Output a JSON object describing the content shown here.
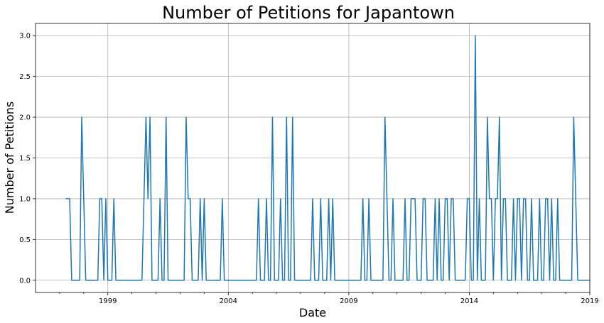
{
  "chart_data": {
    "type": "line",
    "title": "Number of Petitions for Japantown",
    "xlabel": "Date",
    "ylabel": "Number of Petitions",
    "xlim": [
      "1996-01",
      "2019-01"
    ],
    "ylim": [
      -0.15,
      3.15
    ],
    "grid": true,
    "x_ticks": [
      "1999",
      "2004",
      "2009",
      "2014",
      "2019"
    ],
    "y_ticks": [
      "0.0",
      "0.5",
      "1.0",
      "1.5",
      "2.0",
      "2.5",
      "3.0"
    ],
    "series": [
      {
        "color": "#1f77b4",
        "points": [
          [
            "1997-04",
            1
          ],
          [
            "1997-05",
            1
          ],
          [
            "1997-06",
            1
          ],
          [
            "1997-07",
            0
          ],
          [
            "1997-08",
            0
          ],
          [
            "1997-09",
            0
          ],
          [
            "1997-10",
            0
          ],
          [
            "1997-11",
            0
          ],
          [
            "1997-12",
            2
          ],
          [
            "1998-01",
            1
          ],
          [
            "1998-02",
            0
          ],
          [
            "1998-03",
            0
          ],
          [
            "1998-04",
            0
          ],
          [
            "1998-05",
            0
          ],
          [
            "1998-06",
            0
          ],
          [
            "1998-07",
            0
          ],
          [
            "1998-08",
            0
          ],
          [
            "1998-09",
            1
          ],
          [
            "1998-10",
            1
          ],
          [
            "1998-11",
            0
          ],
          [
            "1998-12",
            1
          ],
          [
            "1999-01",
            0
          ],
          [
            "1999-02",
            0
          ],
          [
            "1999-03",
            0
          ],
          [
            "1999-04",
            1
          ],
          [
            "1999-05",
            0
          ],
          [
            "1999-06",
            0
          ],
          [
            "1999-07",
            0
          ],
          [
            "1999-08",
            0
          ],
          [
            "1999-09",
            0
          ],
          [
            "1999-10",
            0
          ],
          [
            "1999-11",
            0
          ],
          [
            "1999-12",
            0
          ],
          [
            "2000-01",
            0
          ],
          [
            "2000-02",
            0
          ],
          [
            "2000-03",
            0
          ],
          [
            "2000-04",
            0
          ],
          [
            "2000-05",
            0
          ],
          [
            "2000-06",
            0
          ],
          [
            "2000-07",
            1
          ],
          [
            "2000-08",
            2
          ],
          [
            "2000-09",
            1
          ],
          [
            "2000-10",
            2
          ],
          [
            "2000-11",
            0
          ],
          [
            "2000-12",
            0
          ],
          [
            "2001-01",
            0
          ],
          [
            "2001-02",
            0
          ],
          [
            "2001-03",
            1
          ],
          [
            "2001-04",
            0
          ],
          [
            "2001-05",
            0
          ],
          [
            "2001-06",
            2
          ],
          [
            "2001-07",
            0
          ],
          [
            "2001-08",
            0
          ],
          [
            "2001-09",
            0
          ],
          [
            "2001-10",
            0
          ],
          [
            "2001-11",
            0
          ],
          [
            "2001-12",
            0
          ],
          [
            "2002-01",
            0
          ],
          [
            "2002-02",
            0
          ],
          [
            "2002-03",
            0
          ],
          [
            "2002-04",
            2
          ],
          [
            "2002-05",
            1
          ],
          [
            "2002-06",
            1
          ],
          [
            "2002-07",
            0
          ],
          [
            "2002-08",
            0
          ],
          [
            "2002-09",
            0
          ],
          [
            "2002-10",
            0
          ],
          [
            "2002-11",
            1
          ],
          [
            "2002-12",
            0
          ],
          [
            "2003-01",
            1
          ],
          [
            "2003-02",
            0
          ],
          [
            "2003-03",
            0
          ],
          [
            "2003-04",
            0
          ],
          [
            "2003-05",
            0
          ],
          [
            "2003-06",
            0
          ],
          [
            "2003-07",
            0
          ],
          [
            "2003-08",
            0
          ],
          [
            "2003-09",
            0
          ],
          [
            "2003-10",
            1
          ],
          [
            "2003-11",
            0
          ],
          [
            "2003-12",
            0
          ],
          [
            "2004-01",
            0
          ],
          [
            "2004-02",
            0
          ],
          [
            "2004-03",
            0
          ],
          [
            "2004-04",
            0
          ],
          [
            "2004-05",
            0
          ],
          [
            "2004-06",
            0
          ],
          [
            "2004-07",
            0
          ],
          [
            "2004-08",
            0
          ],
          [
            "2004-09",
            0
          ],
          [
            "2004-10",
            0
          ],
          [
            "2004-11",
            0
          ],
          [
            "2004-12",
            0
          ],
          [
            "2005-01",
            0
          ],
          [
            "2005-02",
            0
          ],
          [
            "2005-03",
            0
          ],
          [
            "2005-04",
            1
          ],
          [
            "2005-05",
            0
          ],
          [
            "2005-06",
            0
          ],
          [
            "2005-07",
            0
          ],
          [
            "2005-08",
            1
          ],
          [
            "2005-09",
            0
          ],
          [
            "2005-10",
            0
          ],
          [
            "2005-11",
            2
          ],
          [
            "2005-12",
            0
          ],
          [
            "2006-01",
            0
          ],
          [
            "2006-02",
            0
          ],
          [
            "2006-03",
            1
          ],
          [
            "2006-04",
            0
          ],
          [
            "2006-05",
            0
          ],
          [
            "2006-06",
            2
          ],
          [
            "2006-07",
            0
          ],
          [
            "2006-08",
            0
          ],
          [
            "2006-09",
            2
          ],
          [
            "2006-10",
            0
          ],
          [
            "2006-11",
            0
          ],
          [
            "2006-12",
            0
          ],
          [
            "2007-01",
            0
          ],
          [
            "2007-02",
            0
          ],
          [
            "2007-03",
            0
          ],
          [
            "2007-04",
            0
          ],
          [
            "2007-05",
            0
          ],
          [
            "2007-06",
            0
          ],
          [
            "2007-07",
            1
          ],
          [
            "2007-08",
            0
          ],
          [
            "2007-09",
            0
          ],
          [
            "2007-10",
            0
          ],
          [
            "2007-11",
            1
          ],
          [
            "2007-12",
            0
          ],
          [
            "2008-01",
            0
          ],
          [
            "2008-02",
            0
          ],
          [
            "2008-03",
            1
          ],
          [
            "2008-04",
            0
          ],
          [
            "2008-05",
            1
          ],
          [
            "2008-06",
            0
          ],
          [
            "2008-07",
            0
          ],
          [
            "2008-08",
            0
          ],
          [
            "2008-09",
            0
          ],
          [
            "2008-10",
            0
          ],
          [
            "2008-11",
            0
          ],
          [
            "2008-12",
            0
          ],
          [
            "2009-01",
            0
          ],
          [
            "2009-02",
            0
          ],
          [
            "2009-03",
            0
          ],
          [
            "2009-04",
            0
          ],
          [
            "2009-05",
            0
          ],
          [
            "2009-06",
            0
          ],
          [
            "2009-07",
            0
          ],
          [
            "2009-08",
            1
          ],
          [
            "2009-09",
            0
          ],
          [
            "2009-10",
            0
          ],
          [
            "2009-11",
            1
          ],
          [
            "2009-12",
            0
          ],
          [
            "2010-01",
            0
          ],
          [
            "2010-02",
            0
          ],
          [
            "2010-03",
            0
          ],
          [
            "2010-04",
            0
          ],
          [
            "2010-05",
            0
          ],
          [
            "2010-06",
            0
          ],
          [
            "2010-07",
            2
          ],
          [
            "2010-08",
            1
          ],
          [
            "2010-09",
            0
          ],
          [
            "2010-10",
            0
          ],
          [
            "2010-11",
            1
          ],
          [
            "2010-12",
            0
          ],
          [
            "2011-01",
            0
          ],
          [
            "2011-02",
            0
          ],
          [
            "2011-03",
            0
          ],
          [
            "2011-04",
            0
          ],
          [
            "2011-05",
            1
          ],
          [
            "2011-06",
            0
          ],
          [
            "2011-07",
            0
          ],
          [
            "2011-08",
            1
          ],
          [
            "2011-09",
            1
          ],
          [
            "2011-10",
            1
          ],
          [
            "2011-11",
            0
          ],
          [
            "2011-12",
            0
          ],
          [
            "2012-01",
            0
          ],
          [
            "2012-02",
            1
          ],
          [
            "2012-03",
            1
          ],
          [
            "2012-04",
            0
          ],
          [
            "2012-05",
            0
          ],
          [
            "2012-06",
            0
          ],
          [
            "2012-07",
            0
          ],
          [
            "2012-08",
            1
          ],
          [
            "2012-09",
            0
          ],
          [
            "2012-10",
            1
          ],
          [
            "2012-11",
            0
          ],
          [
            "2012-12",
            0
          ],
          [
            "2013-01",
            1
          ],
          [
            "2013-02",
            1
          ],
          [
            "2013-03",
            0
          ],
          [
            "2013-04",
            1
          ],
          [
            "2013-05",
            1
          ],
          [
            "2013-06",
            0
          ],
          [
            "2013-07",
            0
          ],
          [
            "2013-08",
            0
          ],
          [
            "2013-09",
            0
          ],
          [
            "2013-10",
            0
          ],
          [
            "2013-11",
            0
          ],
          [
            "2013-12",
            1
          ],
          [
            "2014-01",
            1
          ],
          [
            "2014-02",
            0
          ],
          [
            "2014-03",
            0
          ],
          [
            "2014-04",
            3
          ],
          [
            "2014-05",
            0
          ],
          [
            "2014-06",
            1
          ],
          [
            "2014-07",
            0
          ],
          [
            "2014-08",
            0
          ],
          [
            "2014-09",
            0
          ],
          [
            "2014-10",
            2
          ],
          [
            "2014-11",
            1
          ],
          [
            "2014-12",
            1
          ],
          [
            "2015-01",
            0
          ],
          [
            "2015-02",
            1
          ],
          [
            "2015-03",
            1
          ],
          [
            "2015-04",
            2
          ],
          [
            "2015-05",
            0
          ],
          [
            "2015-06",
            1
          ],
          [
            "2015-07",
            1
          ],
          [
            "2015-08",
            0
          ],
          [
            "2015-09",
            0
          ],
          [
            "2015-10",
            0
          ],
          [
            "2015-11",
            1
          ],
          [
            "2015-12",
            0
          ],
          [
            "2016-01",
            1
          ],
          [
            "2016-02",
            1
          ],
          [
            "2016-03",
            0
          ],
          [
            "2016-04",
            1
          ],
          [
            "2016-05",
            1
          ],
          [
            "2016-06",
            0
          ],
          [
            "2016-07",
            0
          ],
          [
            "2016-08",
            1
          ],
          [
            "2016-09",
            0
          ],
          [
            "2016-10",
            0
          ],
          [
            "2016-11",
            0
          ],
          [
            "2016-12",
            1
          ],
          [
            "2017-01",
            0
          ],
          [
            "2017-02",
            0
          ],
          [
            "2017-03",
            1
          ],
          [
            "2017-04",
            1
          ],
          [
            "2017-05",
            0
          ],
          [
            "2017-06",
            1
          ],
          [
            "2017-07",
            0
          ],
          [
            "2017-08",
            0
          ],
          [
            "2017-09",
            1
          ],
          [
            "2017-10",
            0
          ],
          [
            "2017-11",
            0
          ],
          [
            "2017-12",
            0
          ],
          [
            "2018-01",
            0
          ],
          [
            "2018-02",
            0
          ],
          [
            "2018-03",
            0
          ],
          [
            "2018-04",
            0
          ],
          [
            "2018-05",
            2
          ],
          [
            "2018-06",
            1
          ],
          [
            "2018-07",
            0
          ],
          [
            "2018-08",
            0
          ],
          [
            "2018-09",
            0
          ],
          [
            "2018-10",
            0
          ],
          [
            "2018-11",
            0
          ],
          [
            "2018-12",
            0
          ],
          [
            "2019-01",
            0
          ]
        ]
      }
    ]
  }
}
